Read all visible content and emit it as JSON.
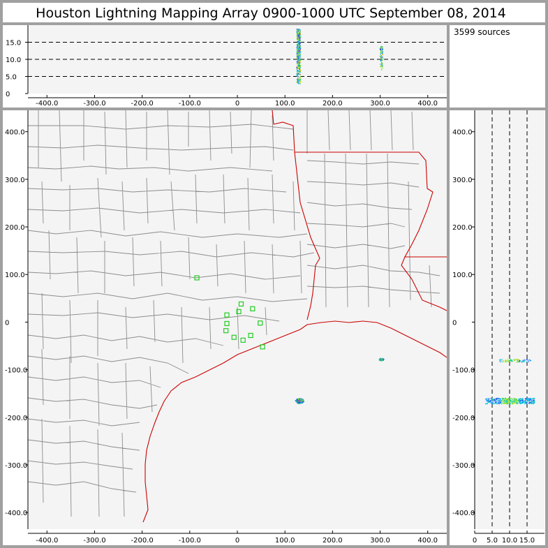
{
  "title": "Houston Lightning Mapping Array   0900-1000 UTC  September 08, 2014",
  "sources_label": "3599 sources",
  "colors": {
    "background": "#f4f4f4",
    "frame": "#a0a0a0",
    "county_lines": "#8c8c8c",
    "state_lines": "#cc0000",
    "stations": "#22cc22"
  },
  "chart_data": [
    {
      "panel": "altitude-vs-east",
      "type": "scatter",
      "x_ticks": [
        "-400.0",
        "-300.0",
        "-200.0",
        "-100.0",
        "0",
        "100.0",
        "200.0",
        "300.0",
        "400.0"
      ],
      "y_ticks": [
        "0",
        "5.0",
        "10.0",
        "15.0"
      ],
      "xlim": [
        -440,
        440
      ],
      "ylim": [
        0,
        20
      ],
      "dashed_gridlines_y": [
        5,
        10,
        15
      ],
      "clusters": [
        {
          "x": 128,
          "y_min": 3,
          "y_max": 19,
          "x_spread": 4
        },
        {
          "x": 302,
          "y_min": 7,
          "y_max": 14,
          "x_spread": 3
        }
      ]
    },
    {
      "panel": "plan-view-map",
      "type": "scatter",
      "x_ticks": [
        "-400.0",
        "-300.0",
        "-200.0",
        "-100.0",
        "0",
        "100.0",
        "200.0",
        "300.0",
        "400.0"
      ],
      "y_ticks": [
        "-400.0",
        "-300.0",
        "-200.0",
        "-100.0",
        "0",
        "100.0",
        "200.0",
        "300.0",
        "400.0"
      ],
      "xlim": [
        -440,
        440
      ],
      "ylim": [
        -435,
        445
      ],
      "source_clusters": [
        {
          "x": 130,
          "y": -165,
          "spread": 7
        },
        {
          "x": 302,
          "y": -78,
          "spread": 4
        }
      ],
      "stations": [
        [
          -85,
          93
        ],
        [
          -22,
          15
        ],
        [
          3,
          22
        ],
        [
          8,
          38
        ],
        [
          32,
          28
        ],
        [
          48,
          -2
        ],
        [
          -22,
          -3
        ],
        [
          -24,
          -18
        ],
        [
          -7,
          -32
        ],
        [
          12,
          -38
        ],
        [
          28,
          -28
        ],
        [
          53,
          -52
        ]
      ]
    },
    {
      "panel": "north-vs-altitude",
      "type": "scatter",
      "x_ticks": [
        "0",
        "5.0",
        "10.0",
        "15.0"
      ],
      "y_ticks": [
        "-400.0",
        "-300.0",
        "-200.0",
        "-100.0",
        "0",
        "100.0",
        "200.0",
        "300.0",
        "400.0"
      ],
      "xlim": [
        0,
        20
      ],
      "ylim": [
        -435,
        445
      ],
      "dashed_gridlines_x": [
        5,
        10,
        15
      ],
      "clusters": [
        {
          "y": -165,
          "x_min": 3,
          "x_max": 17,
          "y_spread": 6
        },
        {
          "y": -80,
          "x_min": 7,
          "x_max": 16,
          "y_spread": 3
        }
      ]
    }
  ]
}
